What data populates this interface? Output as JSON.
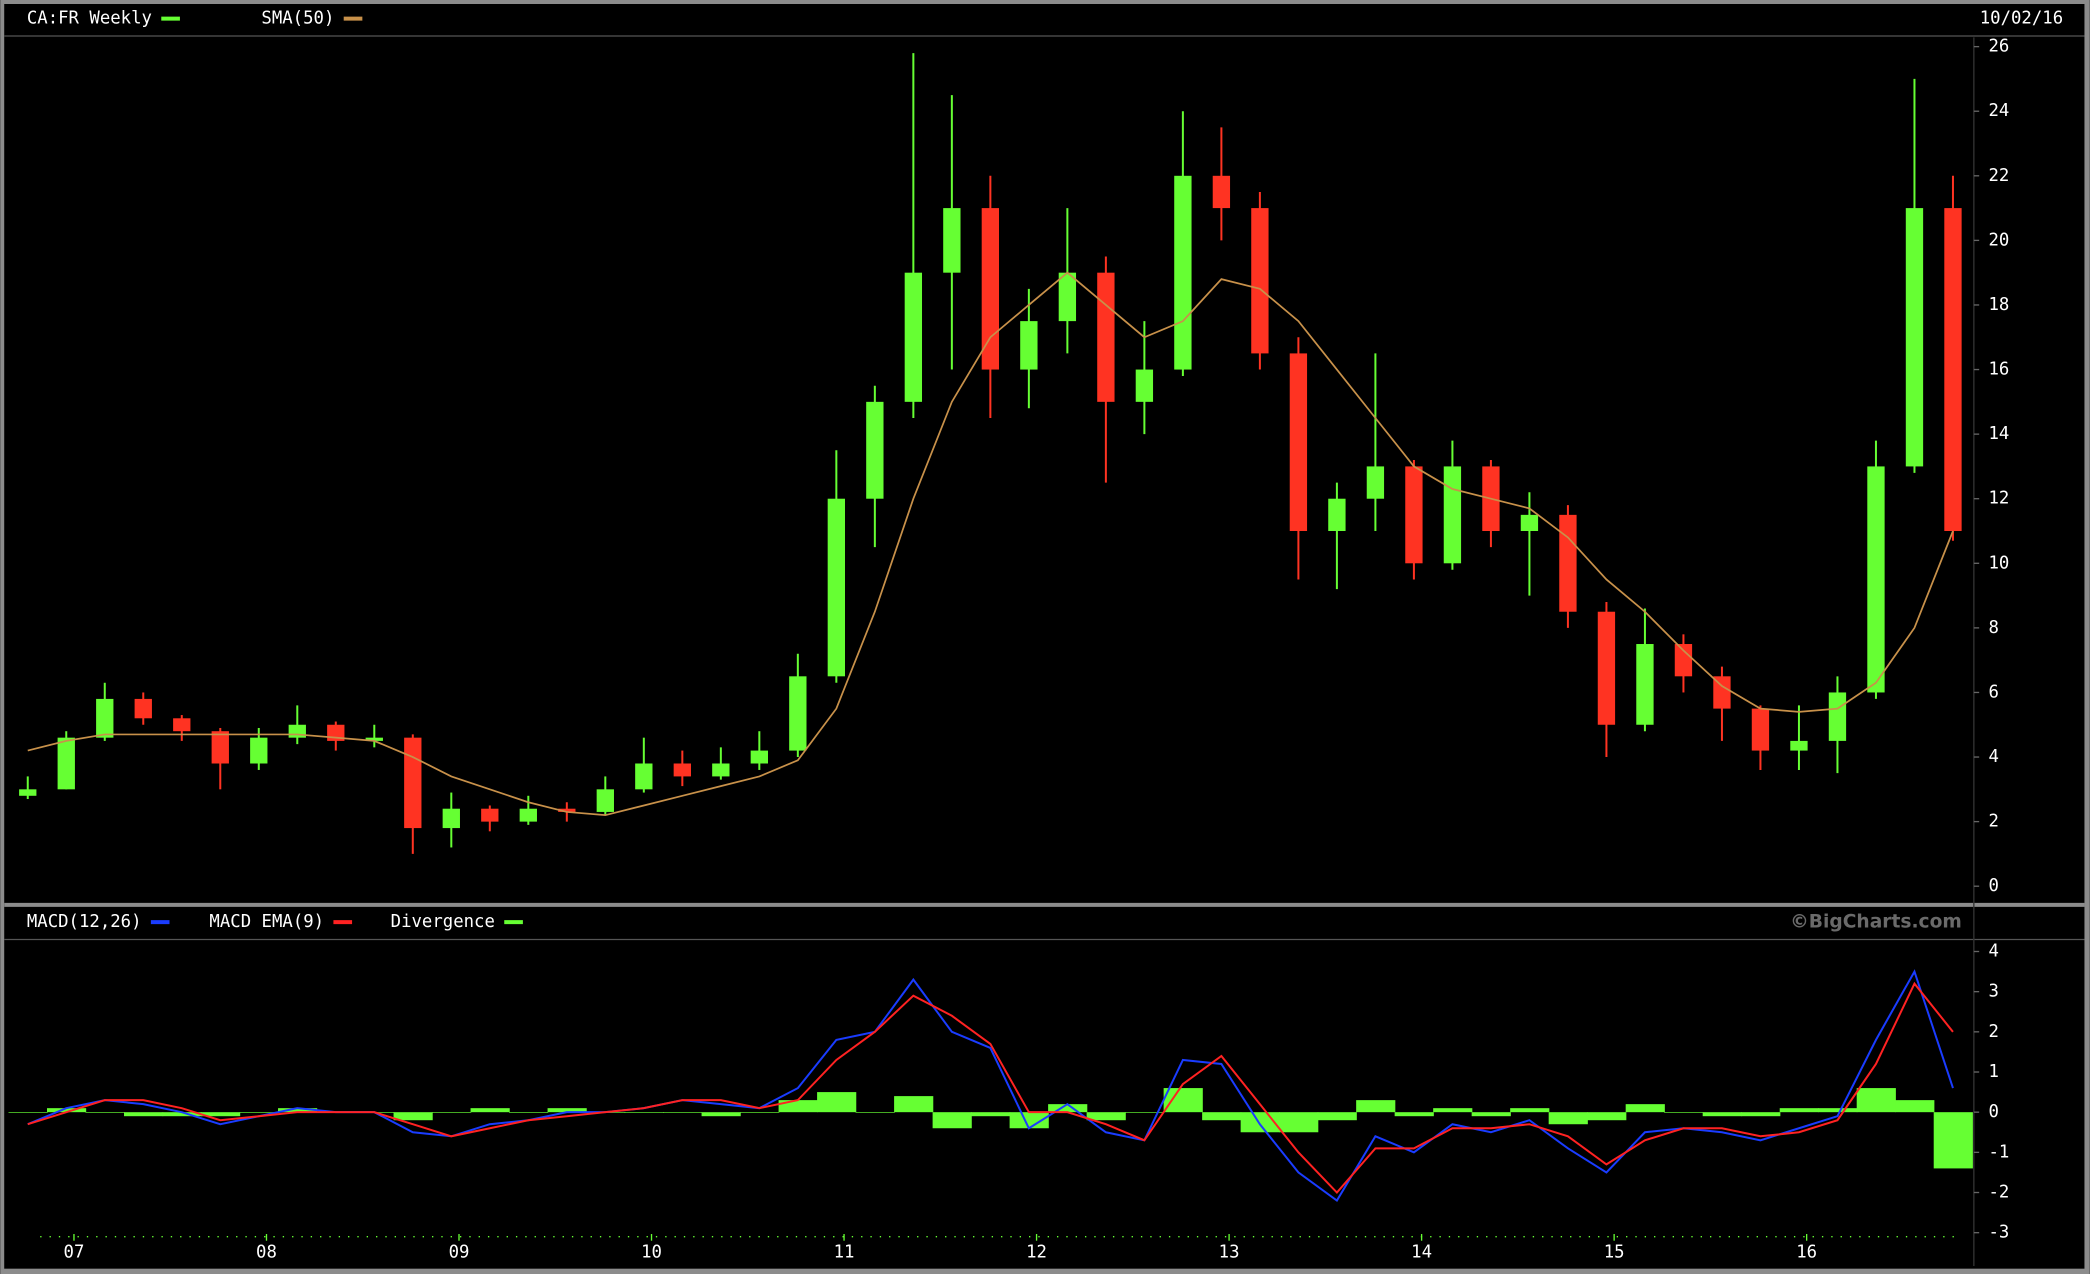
{
  "chart_data": [
    {
      "type": "candlestick",
      "title": "CA:FR Weekly",
      "date": "10/02/16",
      "x": [
        2006.76,
        2006.96,
        2007.16,
        2007.36,
        2007.56,
        2007.76,
        2007.96,
        2008.16,
        2008.36,
        2008.56,
        2008.76,
        2008.96,
        2009.16,
        2009.36,
        2009.56,
        2009.76,
        2009.96,
        2010.16,
        2010.36,
        2010.56,
        2010.76,
        2010.96,
        2011.16,
        2011.36,
        2011.56,
        2011.76,
        2011.96,
        2012.16,
        2012.36,
        2012.56,
        2012.76,
        2012.96,
        2013.16,
        2013.36,
        2013.56,
        2013.76,
        2013.96,
        2014.16,
        2014.36,
        2014.56,
        2014.76,
        2014.96,
        2015.16,
        2015.36,
        2015.56,
        2015.76,
        2015.96,
        2016.16,
        2016.36,
        2016.56,
        2016.76
      ],
      "open": [
        2.8,
        3.0,
        4.6,
        5.8,
        5.2,
        4.8,
        3.8,
        4.6,
        5.0,
        4.5,
        4.6,
        1.8,
        2.4,
        2.0,
        2.4,
        2.3,
        3.0,
        3.8,
        3.4,
        3.8,
        4.2,
        6.5,
        12.0,
        15.0,
        19.0,
        21.0,
        16.0,
        17.5,
        19.0,
        15.0,
        16.0,
        22.0,
        21.0,
        16.5,
        11.0,
        12.0,
        13.0,
        10.0,
        13.0,
        11.0,
        11.5,
        8.5,
        5.0,
        7.5,
        6.5,
        5.5,
        4.2,
        4.5,
        6.0,
        13.0,
        21.0
      ],
      "high": [
        3.4,
        4.8,
        6.3,
        6.0,
        5.3,
        4.9,
        4.9,
        5.6,
        5.1,
        5.0,
        4.7,
        2.9,
        2.5,
        2.8,
        2.6,
        3.4,
        4.6,
        4.2,
        4.3,
        4.8,
        7.2,
        13.5,
        15.5,
        25.8,
        24.5,
        22.0,
        18.5,
        21.0,
        19.5,
        17.5,
        24.0,
        23.5,
        21.5,
        17.0,
        12.5,
        16.5,
        13.2,
        13.8,
        13.2,
        12.2,
        11.8,
        8.8,
        8.6,
        7.8,
        6.8,
        5.6,
        5.6,
        6.5,
        13.8,
        25.0,
        22.0
      ],
      "low": [
        2.7,
        3.0,
        4.5,
        5.0,
        4.5,
        3.0,
        3.6,
        4.4,
        4.2,
        4.3,
        1.0,
        1.2,
        1.7,
        1.9,
        2.0,
        2.2,
        2.9,
        3.1,
        3.3,
        3.6,
        4.0,
        6.3,
        10.5,
        14.5,
        16.0,
        14.5,
        14.8,
        16.5,
        12.5,
        14.0,
        15.8,
        20.0,
        16.0,
        9.5,
        9.2,
        11.0,
        9.5,
        9.8,
        10.5,
        9.0,
        8.0,
        4.0,
        4.8,
        6.0,
        4.5,
        3.6,
        3.6,
        3.5,
        5.8,
        12.8,
        10.7
      ],
      "close": [
        3.0,
        4.6,
        5.8,
        5.2,
        4.8,
        3.8,
        4.6,
        5.0,
        4.5,
        4.6,
        1.8,
        2.4,
        2.0,
        2.4,
        2.3,
        3.0,
        3.8,
        3.4,
        3.8,
        4.2,
        6.5,
        12.0,
        15.0,
        19.0,
        21.0,
        16.0,
        17.5,
        19.0,
        15.0,
        16.0,
        22.0,
        21.0,
        16.5,
        11.0,
        12.0,
        13.0,
        10.0,
        13.0,
        11.0,
        11.5,
        8.5,
        5.0,
        7.5,
        6.5,
        5.5,
        4.2,
        4.5,
        6.0,
        13.0,
        21.0,
        11.0
      ],
      "up_color": "#66ff33",
      "down_color": "#ff3322",
      "sma": {
        "name": "SMA(50)",
        "color": "#c8914a",
        "values": [
          4.2,
          4.5,
          4.7,
          4.7,
          4.7,
          4.7,
          4.7,
          4.7,
          4.6,
          4.5,
          4.0,
          3.4,
          3.0,
          2.6,
          2.3,
          2.2,
          2.5,
          2.8,
          3.1,
          3.4,
          3.9,
          5.5,
          8.5,
          12.0,
          15.0,
          17.0,
          18.0,
          19.0,
          18.0,
          17.0,
          17.5,
          18.8,
          18.5,
          17.5,
          16.0,
          14.5,
          13.0,
          12.3,
          12.0,
          11.7,
          10.8,
          9.5,
          8.5,
          7.3,
          6.2,
          5.5,
          5.4,
          5.5,
          6.3,
          8.0,
          11.0
        ]
      },
      "title_color": "#66ff33",
      "xlim": [
        2006.7,
        2016.82
      ],
      "ylim": [
        0,
        26
      ],
      "yticks": [
        0,
        2,
        4,
        6,
        8,
        10,
        12,
        14,
        16,
        18,
        20,
        22,
        24,
        26
      ]
    },
    {
      "type": "line",
      "credit": "©BigCharts.com",
      "x": [
        2006.76,
        2006.96,
        2007.16,
        2007.36,
        2007.56,
        2007.76,
        2007.96,
        2008.16,
        2008.36,
        2008.56,
        2008.76,
        2008.96,
        2009.16,
        2009.36,
        2009.56,
        2009.76,
        2009.96,
        2010.16,
        2010.36,
        2010.56,
        2010.76,
        2010.96,
        2011.16,
        2011.36,
        2011.56,
        2011.76,
        2011.96,
        2012.16,
        2012.36,
        2012.56,
        2012.76,
        2012.96,
        2013.16,
        2013.36,
        2013.56,
        2013.76,
        2013.96,
        2014.16,
        2014.36,
        2014.56,
        2014.76,
        2014.96,
        2015.16,
        2015.36,
        2015.56,
        2015.76,
        2015.96,
        2016.16,
        2016.36,
        2016.56,
        2016.76
      ],
      "series": [
        {
          "name": "MACD(12,26)",
          "color": "#1a3cff",
          "style": "line",
          "values": [
            -0.3,
            0.1,
            0.3,
            0.2,
            0.0,
            -0.3,
            -0.1,
            0.1,
            0.0,
            0.0,
            -0.5,
            -0.6,
            -0.3,
            -0.2,
            0.0,
            0.0,
            0.1,
            0.3,
            0.2,
            0.1,
            0.6,
            1.8,
            2.0,
            3.3,
            2.0,
            1.6,
            -0.4,
            0.2,
            -0.5,
            -0.7,
            1.3,
            1.2,
            -0.3,
            -1.5,
            -2.2,
            -0.6,
            -1.0,
            -0.3,
            -0.5,
            -0.2,
            -0.9,
            -1.5,
            -0.5,
            -0.4,
            -0.5,
            -0.7,
            -0.4,
            -0.1,
            1.8,
            3.5,
            0.6
          ]
        },
        {
          "name": "MACD EMA(9)",
          "color": "#ff2222",
          "style": "line",
          "values": [
            -0.3,
            0.0,
            0.3,
            0.3,
            0.1,
            -0.2,
            -0.1,
            0.0,
            0.0,
            0.0,
            -0.3,
            -0.6,
            -0.4,
            -0.2,
            -0.1,
            0.0,
            0.1,
            0.3,
            0.3,
            0.1,
            0.3,
            1.3,
            2.0,
            2.9,
            2.4,
            1.7,
            0.0,
            0.0,
            -0.3,
            -0.7,
            0.7,
            1.4,
            0.2,
            -1.0,
            -2.0,
            -0.9,
            -0.9,
            -0.4,
            -0.4,
            -0.3,
            -0.6,
            -1.3,
            -0.7,
            -0.4,
            -0.4,
            -0.6,
            -0.5,
            -0.2,
            1.2,
            3.2,
            2.0
          ]
        },
        {
          "name": "Divergence",
          "color": "#66ff33",
          "style": "bars",
          "values": [
            0,
            0.1,
            0,
            -0.1,
            -0.1,
            -0.1,
            0,
            0.1,
            0,
            0,
            -0.2,
            0,
            0.1,
            0,
            0.1,
            0,
            0,
            0,
            -0.1,
            0,
            0.3,
            0.5,
            0,
            0.4,
            -0.4,
            -0.1,
            -0.4,
            0.2,
            -0.2,
            0,
            0.6,
            -0.2,
            -0.5,
            -0.5,
            -0.2,
            0.3,
            -0.1,
            0.1,
            -0.1,
            0.1,
            -0.3,
            -0.2,
            0.2,
            0,
            -0.1,
            -0.1,
            0.1,
            0.1,
            0.6,
            0.3,
            -1.4
          ]
        }
      ],
      "xlim": [
        2006.7,
        2016.82
      ],
      "ylim": [
        -3,
        4
      ],
      "yticks": [
        -3,
        -2,
        -1,
        0,
        1,
        2,
        3,
        4
      ],
      "xticks": [
        {
          "value": 2007,
          "label": "07"
        },
        {
          "value": 2008,
          "label": "08"
        },
        {
          "value": 2009,
          "label": "09"
        },
        {
          "value": 2010,
          "label": "10"
        },
        {
          "value": 2011,
          "label": "11"
        },
        {
          "value": 2012,
          "label": "12"
        },
        {
          "value": 2013,
          "label": "13"
        },
        {
          "value": 2014,
          "label": "14"
        },
        {
          "value": 2015,
          "label": "15"
        },
        {
          "value": 2016,
          "label": "16"
        }
      ]
    }
  ]
}
